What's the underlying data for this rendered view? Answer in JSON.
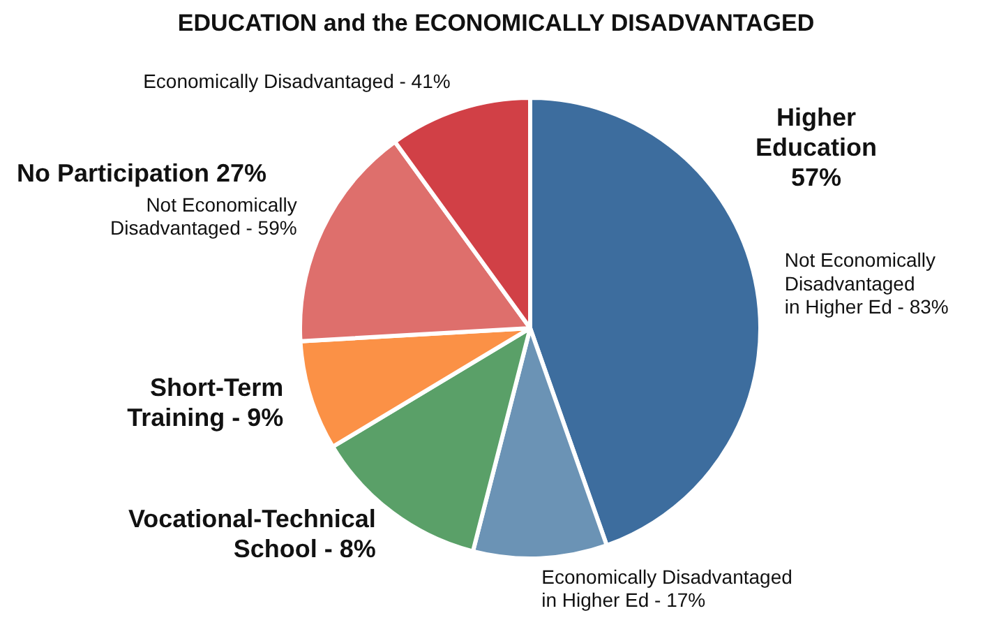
{
  "chart_data": {
    "type": "pie",
    "title": "EDUCATION and the ECONOMICALLY DISADVANTAGED",
    "categories": [
      "Not Economically\nDisadvantaged\nin Higher Ed - 83%",
      "Economically Disadvantaged\nin Higher Ed - 17%",
      "Vocational-Technical\nSchool - 8%",
      "Short-Term\nTraining - 9%",
      "Not Economically\nDisadvantaged - 59%",
      "Economically Disadvantaged - 41%"
    ],
    "values": [
      44.6,
      9.4,
      12.4,
      7.7,
      15.9,
      10.0
    ],
    "colors": [
      "#3d6d9e",
      "#6b93b5",
      "#5aa068",
      "#fb9146",
      "#de6f6c",
      "#d14046"
    ],
    "annotations": [
      "Higher\nEducation\n57%",
      "No Participation 27%"
    ]
  }
}
